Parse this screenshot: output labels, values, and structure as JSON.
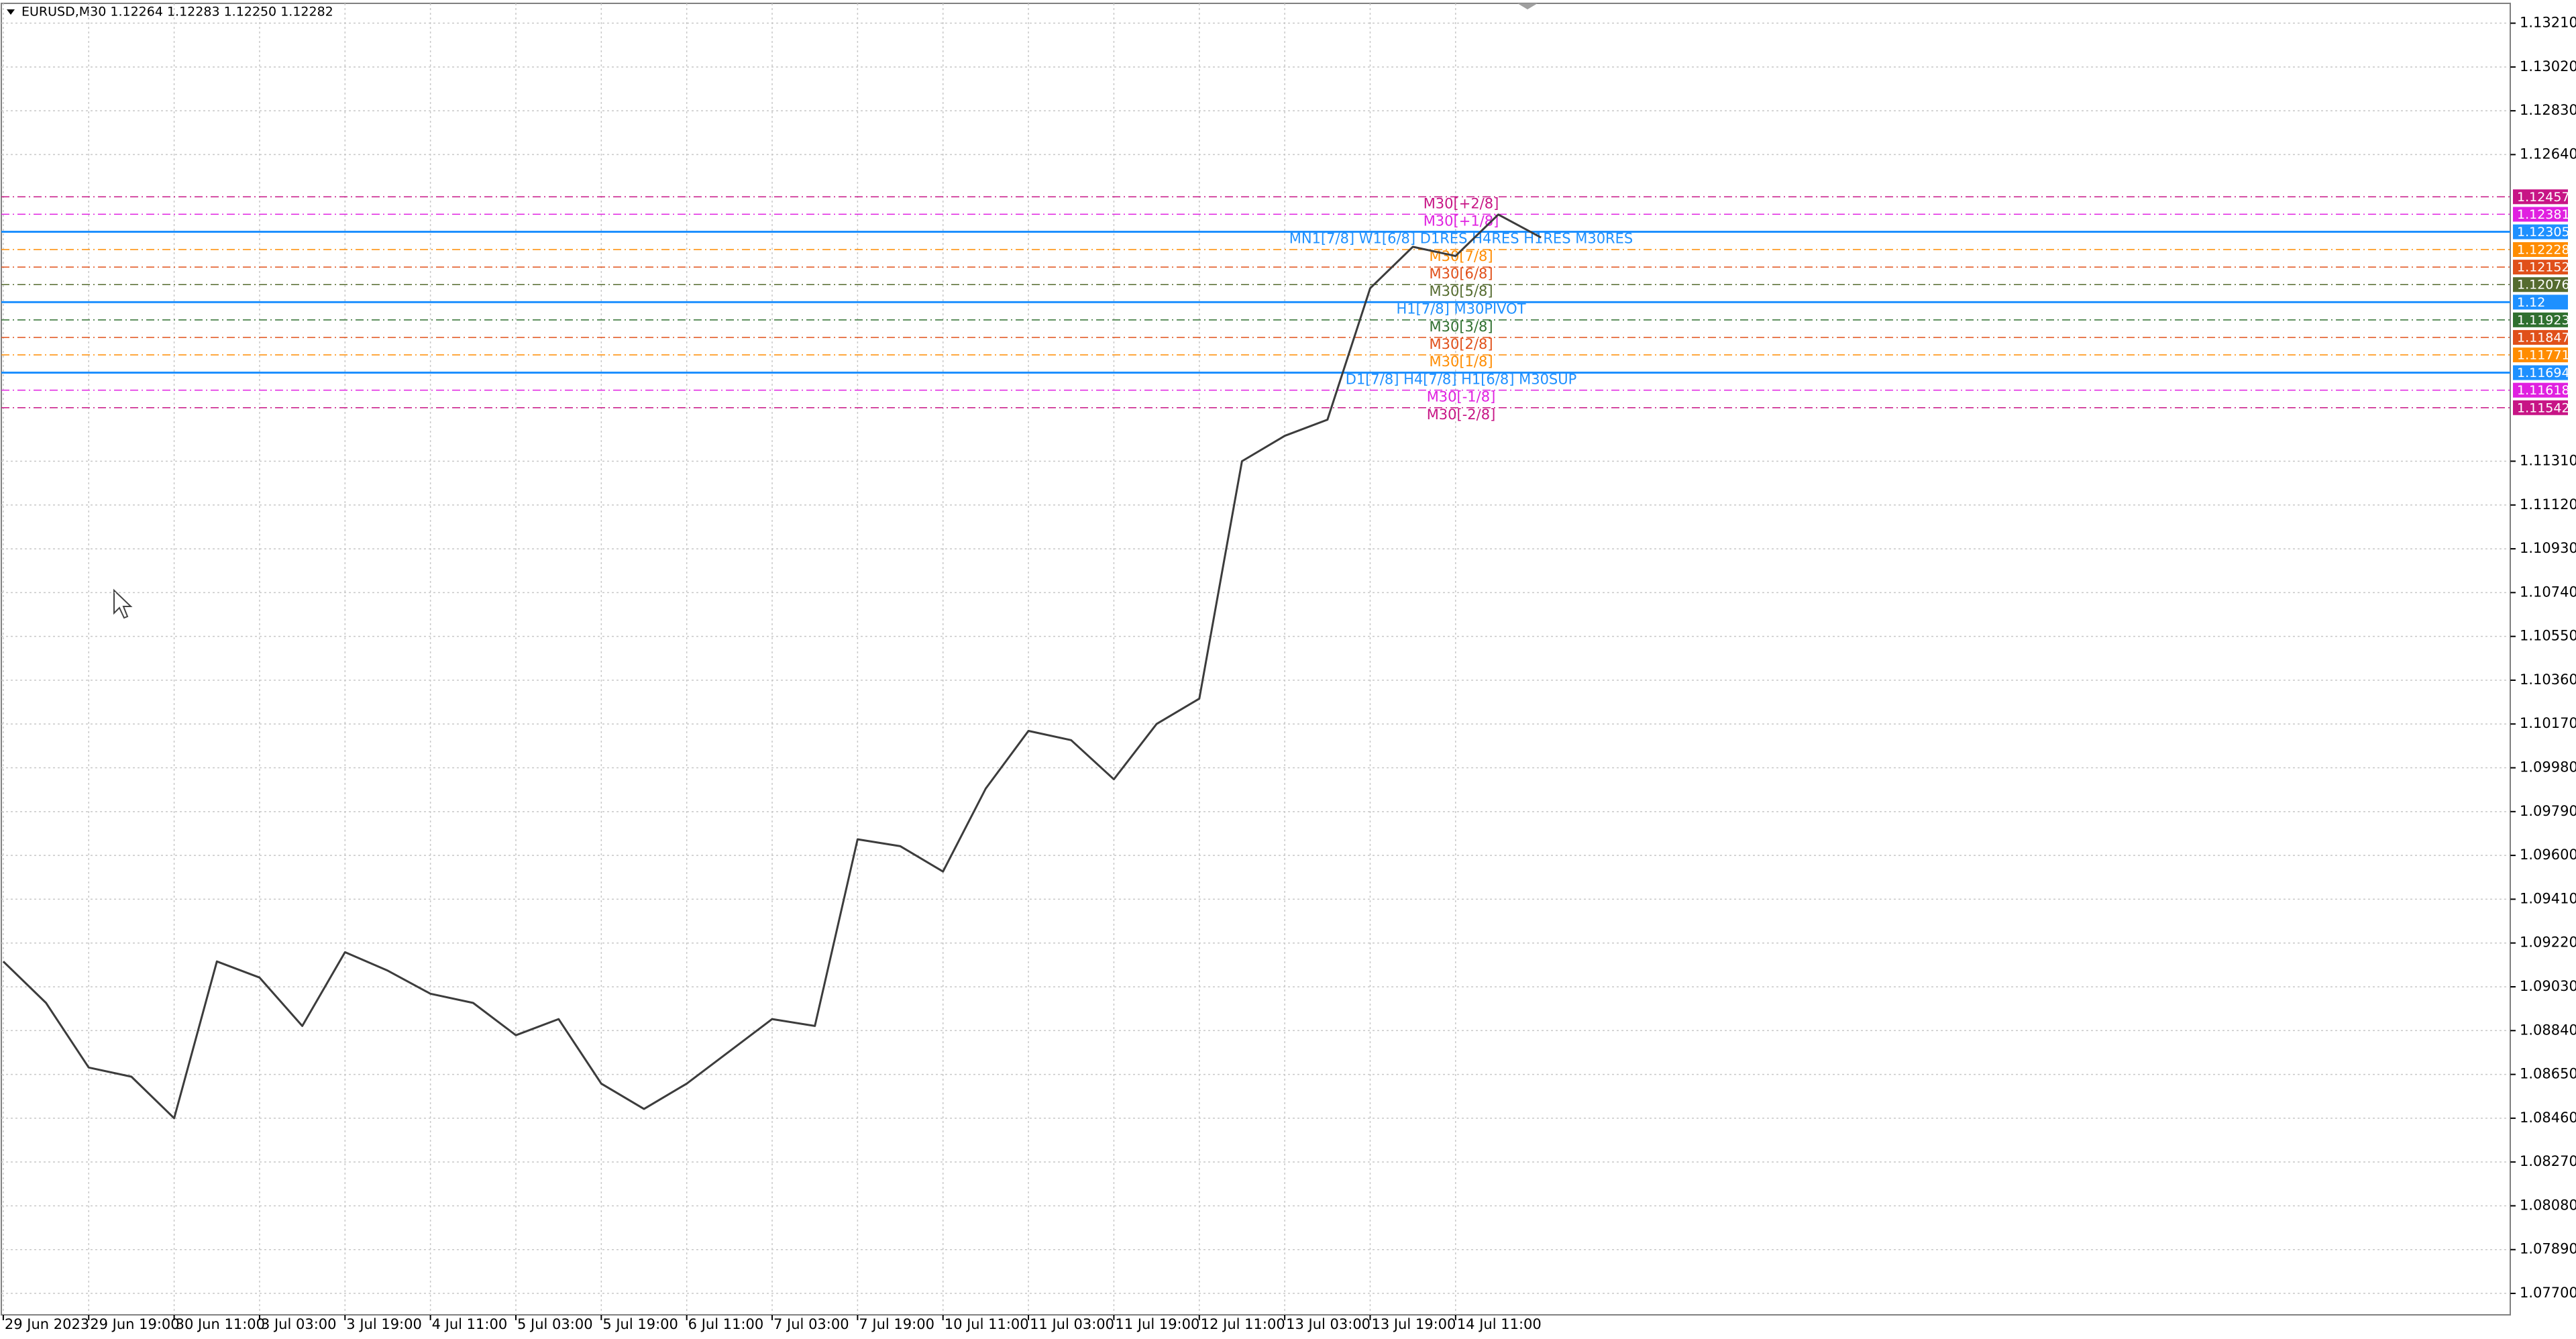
{
  "chart_data": {
    "type": "line",
    "title": "EURUSD,M30  1.12264 1.12283 1.12250 1.12282",
    "color": "#3c3c3c",
    "categories": [
      "29 Jun 2023",
      null,
      "29 Jun 19:00",
      null,
      "30 Jun 11:00",
      null,
      "3 Jul 03:00",
      null,
      "3 Jul 19:00",
      null,
      "4 Jul 11:00",
      null,
      "5 Jul 03:00",
      null,
      "5 Jul 19:00",
      null,
      "6 Jul 11:00",
      null,
      "7 Jul 03:00",
      null,
      "7 Jul 19:00",
      null,
      "10 Jul 11:00",
      null,
      "11 Jul 03:00",
      null,
      "11 Jul 19:00",
      null,
      "12 Jul 11:00",
      null,
      "13 Jul 03:00",
      null,
      "13 Jul 19:00",
      null,
      "14 Jul 11:00",
      null,
      null
    ],
    "values": [
      1.0914,
      1.0896,
      1.0868,
      1.0864,
      1.0846,
      1.0914,
      1.0907,
      1.0886,
      1.0918,
      1.091,
      1.09,
      1.0896,
      1.0882,
      1.0889,
      1.0861,
      1.085,
      1.0861,
      1.0875,
      1.0889,
      1.0886,
      1.0967,
      1.0964,
      1.0953,
      1.0989,
      1.1014,
      1.101,
      1.0993,
      1.1017,
      1.1028,
      1.1131,
      1.1142,
      1.1149,
      1.1206,
      1.1224,
      1.122,
      1.1238,
      1.1228
    ],
    "ylim": [
      1.07607,
      1.13296
    ],
    "yticks": [
      {
        "value": 1.1321,
        "label": "1.13210"
      },
      {
        "value": 1.1302,
        "label": "1.13020"
      },
      {
        "value": 1.1283,
        "label": "1.12830"
      },
      {
        "value": 1.1264,
        "label": "1.12640"
      },
      {
        "value": 1.1131,
        "label": "1.11310"
      },
      {
        "value": 1.1112,
        "label": "1.11120"
      },
      {
        "value": 1.1093,
        "label": "1.10930"
      },
      {
        "value": 1.1074,
        "label": "1.10740"
      },
      {
        "value": 1.1055,
        "label": "1.10550"
      },
      {
        "value": 1.1036,
        "label": "1.10360"
      },
      {
        "value": 1.1017,
        "label": "1.10170"
      },
      {
        "value": 1.0998,
        "label": "1.09980"
      },
      {
        "value": 1.0979,
        "label": "1.09790"
      },
      {
        "value": 1.096,
        "label": "1.09600"
      },
      {
        "value": 1.0941,
        "label": "1.09410"
      },
      {
        "value": 1.0922,
        "label": "1.09220"
      },
      {
        "value": 1.0903,
        "label": "1.09030"
      },
      {
        "value": 1.0884,
        "label": "1.08840"
      },
      {
        "value": 1.0865,
        "label": "1.08650"
      },
      {
        "value": 1.0846,
        "label": "1.08460"
      },
      {
        "value": 1.0827,
        "label": "1.08270"
      },
      {
        "value": 1.0808,
        "label": "1.08080"
      },
      {
        "value": 1.0789,
        "label": "1.07890"
      },
      {
        "value": 1.077,
        "label": "1.07700"
      }
    ],
    "grid": true,
    "levels": [
      {
        "value": 1.12457,
        "text": "M30[+2/8]",
        "color": "#c71585"
      },
      {
        "value": 1.12381,
        "text": "M30[+1/8]",
        "color": "#e020e0"
      },
      {
        "value": 1.12305,
        "text": "MN1[7/8] W1[6/8] D1RES H4RES H1RES M30RES",
        "color": "#1e90ff"
      },
      {
        "value": 1.12228,
        "text": "M30[7/8]",
        "color": "#ff8c00"
      },
      {
        "value": 1.12152,
        "text": "M30[6/8]",
        "color": "#e0501a"
      },
      {
        "value": 1.12076,
        "text": "M30[5/8]",
        "color": "#556b2f"
      },
      {
        "value": 1.12,
        "text": "H1[7/8] M30PIVOT",
        "color": "#1e90ff"
      },
      {
        "value": 1.11923,
        "text": "M30[3/8]",
        "color": "#2f6f2f"
      },
      {
        "value": 1.11847,
        "text": "M30[2/8]",
        "color": "#e0501a"
      },
      {
        "value": 1.11771,
        "text": "M30[1/8]",
        "color": "#ff8c00"
      },
      {
        "value": 1.11694,
        "text": "D1[7/8] H4[7/8] H1[6/8] M30SUP",
        "color": "#1e90ff"
      },
      {
        "value": 1.11618,
        "text": "M30[-1/8]",
        "color": "#e020e0"
      },
      {
        "value": 1.11542,
        "text": "M30[-2/8]",
        "color": "#c71585"
      }
    ]
  }
}
